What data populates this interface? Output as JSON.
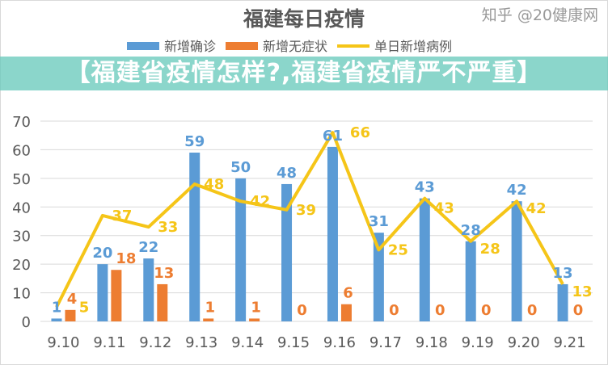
{
  "chart_data": {
    "type": "bar",
    "title": "福建每日疫情",
    "categories": [
      "9.10",
      "9.11",
      "9.12",
      "9.13",
      "9.14",
      "9.15",
      "9.16",
      "9.17",
      "9.18",
      "9.19",
      "9.20",
      "9.21"
    ],
    "series": [
      {
        "name": "新增确诊",
        "kind": "bar",
        "color": "#5b9bd5",
        "values": [
          1,
          20,
          22,
          59,
          50,
          48,
          61,
          31,
          43,
          28,
          42,
          13
        ]
      },
      {
        "name": "新增无症状",
        "kind": "bar",
        "color": "#ed7d31",
        "values": [
          4,
          18,
          13,
          1,
          1,
          0,
          6,
          0,
          0,
          0,
          0,
          0
        ]
      },
      {
        "name": "单日新增病例",
        "kind": "line",
        "color": "#f5c518",
        "values": [
          5,
          37,
          33,
          48,
          42,
          39,
          66,
          25,
          43,
          28,
          42,
          13
        ]
      }
    ],
    "yticks": [
      0,
      10,
      20,
      30,
      40,
      50,
      60,
      70
    ],
    "ylim": [
      0,
      70
    ],
    "grid": true,
    "legend": "top"
  },
  "banner": "【福建省疫情怎样?,福建省疫情严不严重】",
  "watermark": "知乎 @20健康网"
}
